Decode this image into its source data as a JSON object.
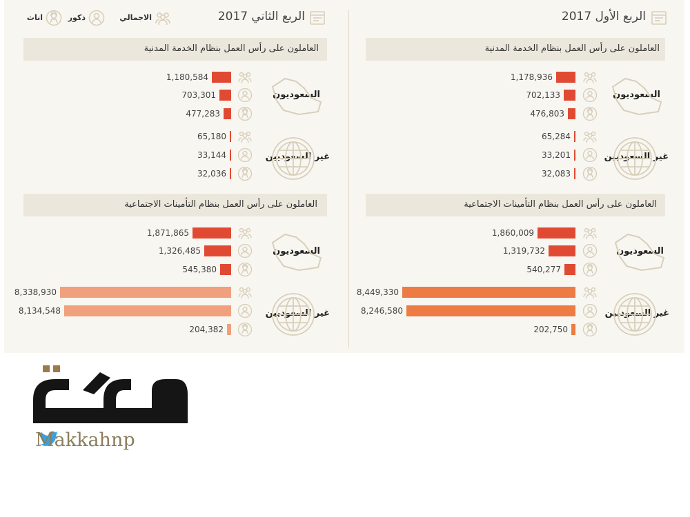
{
  "colors": {
    "bar_dark": "#e04a33",
    "bar_light": "#f0a07c",
    "bar_light_right": "#ec7b44",
    "icon": "#d8cfbb",
    "text": "#333333"
  },
  "legend": {
    "total": "الاجمالي",
    "males": "ذكور",
    "females": "اناث"
  },
  "logo": {
    "handle": "Makkahnp",
    "icon": "twitter-bird-icon",
    "wordmark": "مكة"
  },
  "chart_data": [
    {
      "type": "bar",
      "orientation": "horizontal",
      "quarter": "الربع الأول 2017",
      "sections": [
        {
          "title": "العاملون على رأس العمل بنظام الخدمة المدنية",
          "groups": [
            {
              "label": "السعوديون",
              "values": [
                1178936,
                702133,
                476803
              ]
            },
            {
              "label": "غير السعوديين",
              "values": [
                65284,
                33201,
                32083
              ]
            }
          ]
        },
        {
          "title": "العاملون على رأس العمل بنظام التأمينات الاجتماعية",
          "groups": [
            {
              "label": "السعوديون",
              "values": [
                1860009,
                1319732,
                540277
              ]
            },
            {
              "label": "غير السعوديين",
              "values": [
                8449330,
                8246580,
                202750
              ]
            }
          ]
        }
      ]
    },
    {
      "type": "bar",
      "orientation": "horizontal",
      "quarter": "الربع الثاني 2017",
      "sections": [
        {
          "title": "العاملون على رأس العمل بنظام الخدمة المدنية",
          "groups": [
            {
              "label": "السعوديون",
              "values": [
                1180584,
                703301,
                477283
              ]
            },
            {
              "label": "غير السعوديين",
              "values": [
                65180,
                33144,
                32036
              ]
            }
          ]
        },
        {
          "title": "العاملون على رأس العمل بنظام التأمينات الاجتماعية",
          "groups": [
            {
              "label": "السعوديون",
              "values": [
                1871865,
                1326485,
                545380
              ]
            },
            {
              "label": "غير السعوديين",
              "values": [
                8338930,
                8134548,
                204382
              ]
            }
          ]
        }
      ]
    }
  ],
  "value_labels": {
    "q1": {
      "cs": [
        "1,178,936",
        "702,133",
        "476,803",
        "65,284",
        "33,201",
        "32,083"
      ],
      "si": [
        "1,860,009",
        "1,319,732",
        "540,277",
        "8,449,330",
        "8,246,580",
        "202,750"
      ]
    },
    "q2": {
      "cs": [
        "1,180,584",
        "703,301",
        "477,283",
        "65,180",
        "33,144",
        "32,036"
      ],
      "si": [
        "1,871,865",
        "1,326,485",
        "545,380",
        "8,338,930",
        "8,134,548",
        "204,382"
      ]
    }
  }
}
